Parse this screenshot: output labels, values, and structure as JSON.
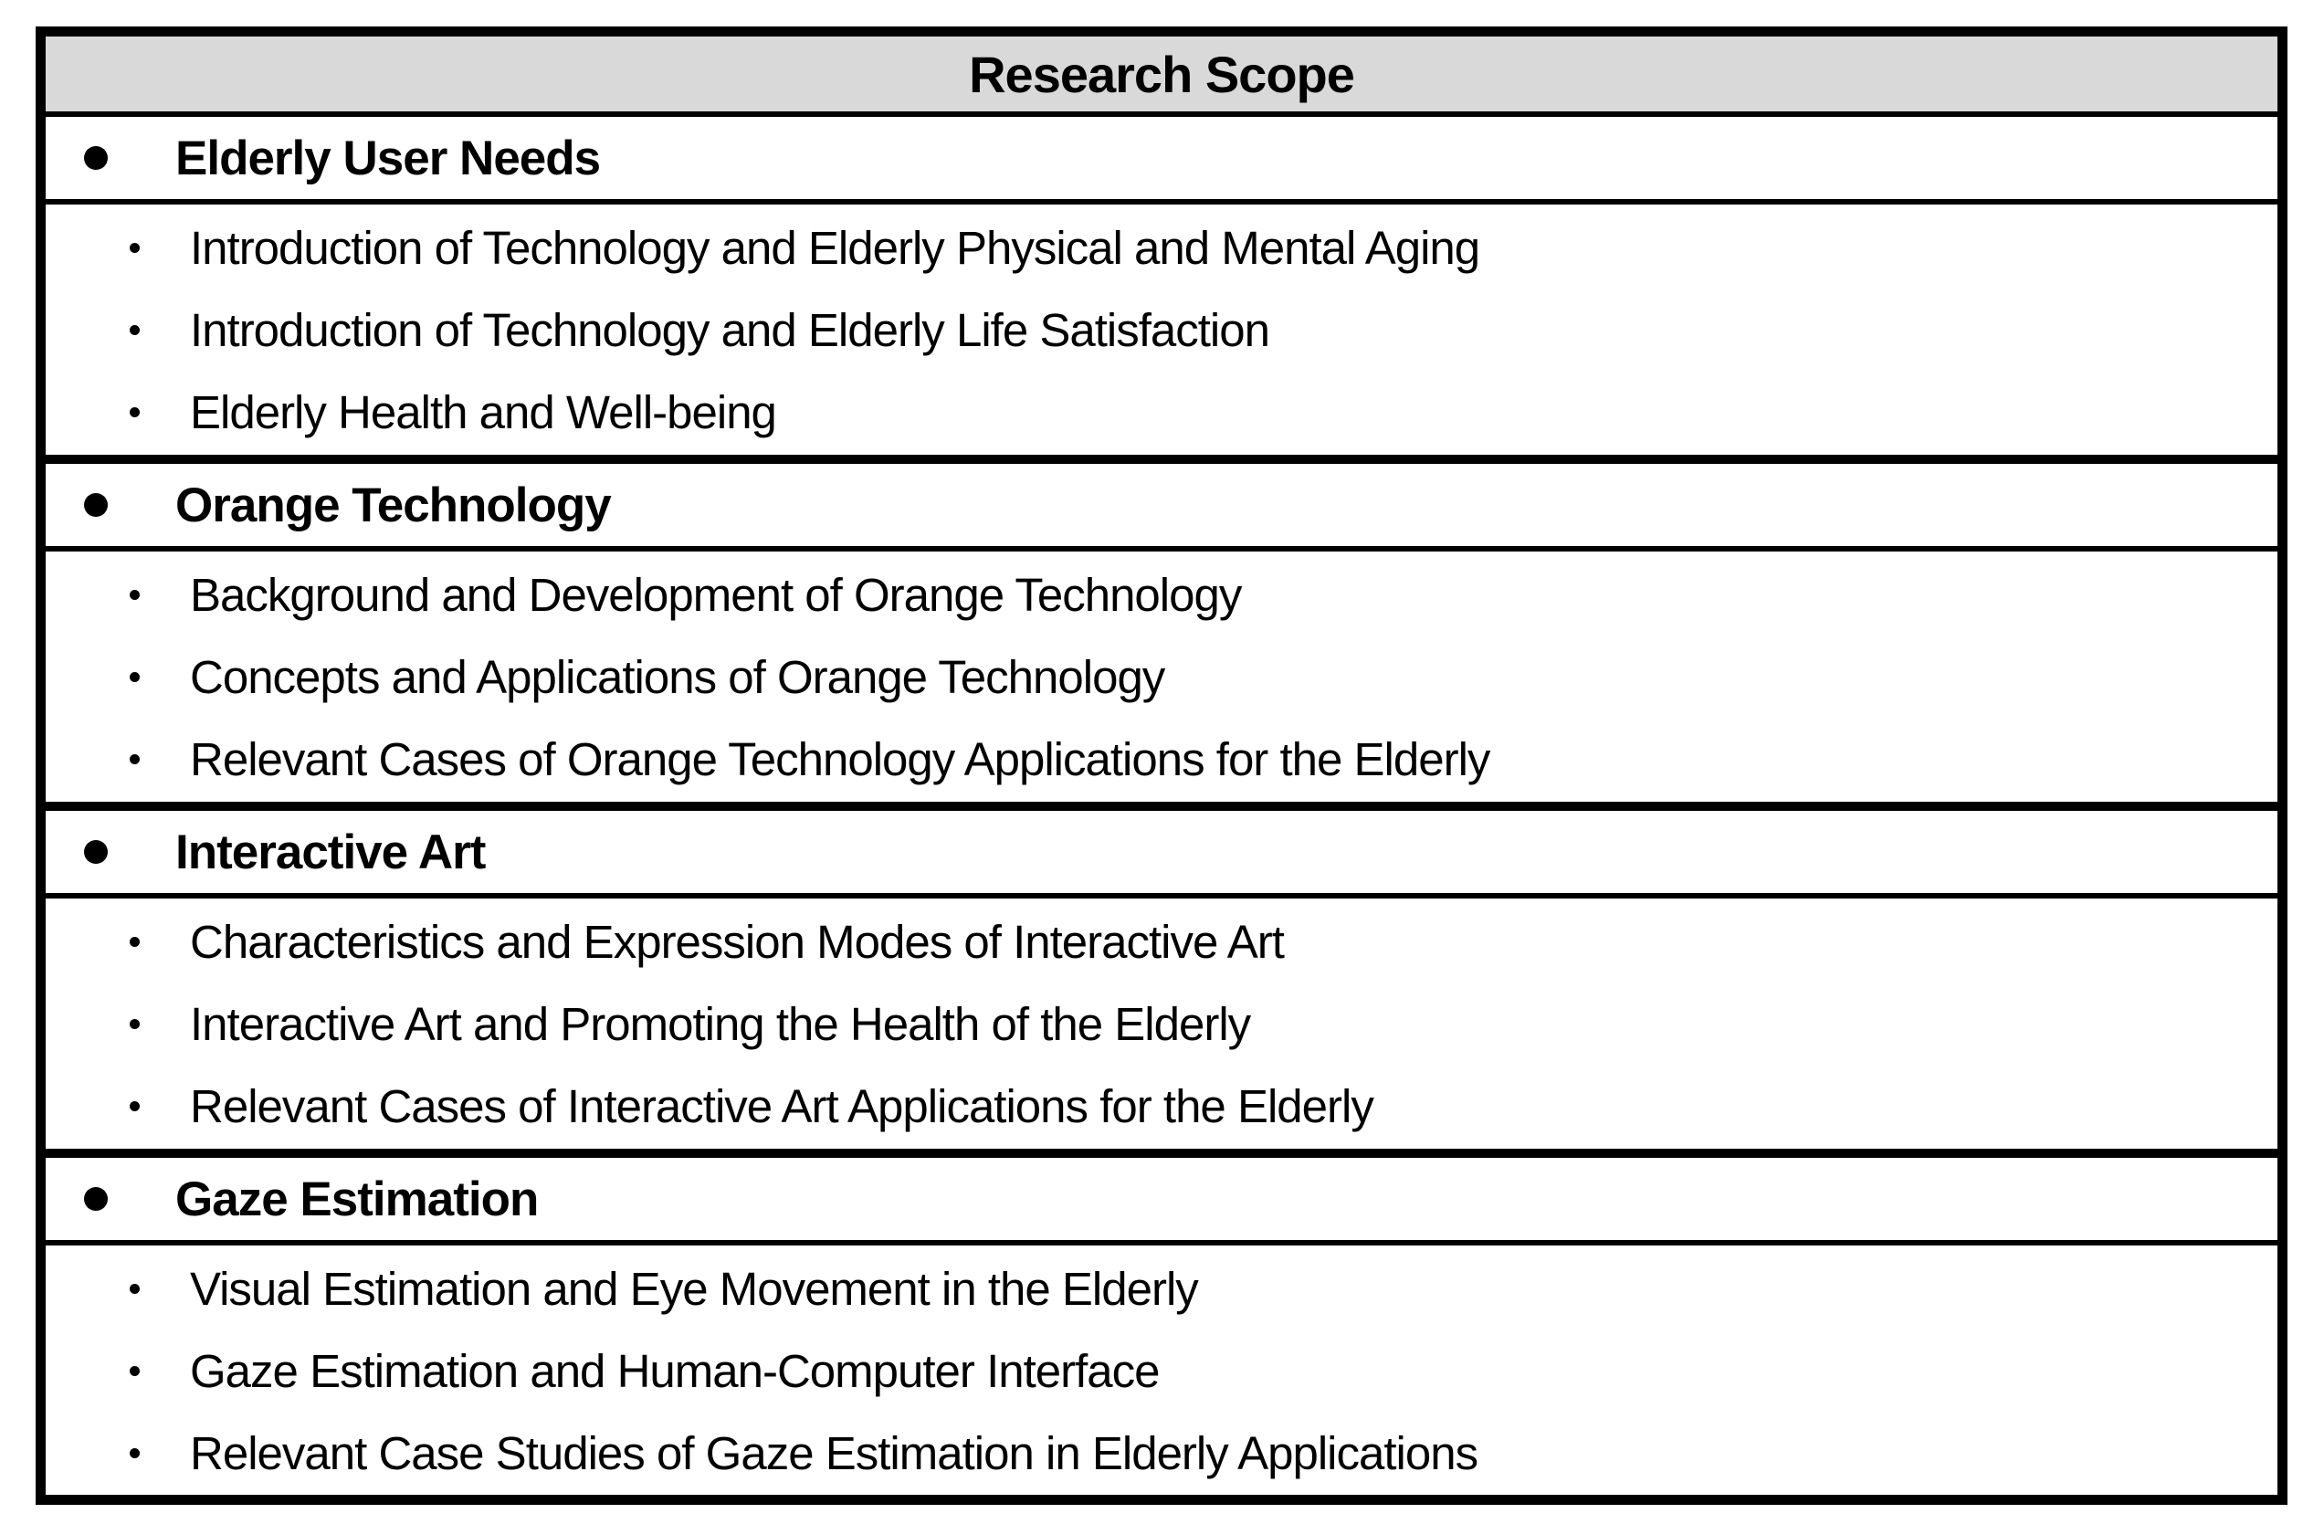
{
  "table": {
    "title": "Research Scope",
    "sections": [
      {
        "label": "Elderly User Needs",
        "items": [
          "Introduction of Technology and Elderly Physical and Mental Aging",
          "Introduction of Technology and Elderly Life Satisfaction",
          "Elderly Health and Well-being"
        ]
      },
      {
        "label": "Orange Technology",
        "items": [
          "Background and Development of Orange Technology",
          "Concepts and Applications of Orange Technology",
          "Relevant Cases of Orange Technology Applications for the Elderly"
        ]
      },
      {
        "label": "Interactive Art",
        "items": [
          "Characteristics and Expression Modes of Interactive Art",
          "Interactive Art and Promoting the Health of the Elderly",
          "Relevant Cases of Interactive Art Applications for the Elderly"
        ]
      },
      {
        "label": "Gaze Estimation",
        "items": [
          "Visual Estimation and Eye Movement in the Elderly",
          "Gaze Estimation and Human-Computer Interface",
          "Relevant Case Studies of Gaze Estimation in Elderly Applications"
        ]
      }
    ]
  },
  "colors": {
    "header_background": "#d9d9d9",
    "border": "#000000",
    "text": "#000000",
    "page_background": "#ffffff"
  },
  "icons": {
    "section_bullet": "filled-circle",
    "item_bullet": "small-dot"
  }
}
